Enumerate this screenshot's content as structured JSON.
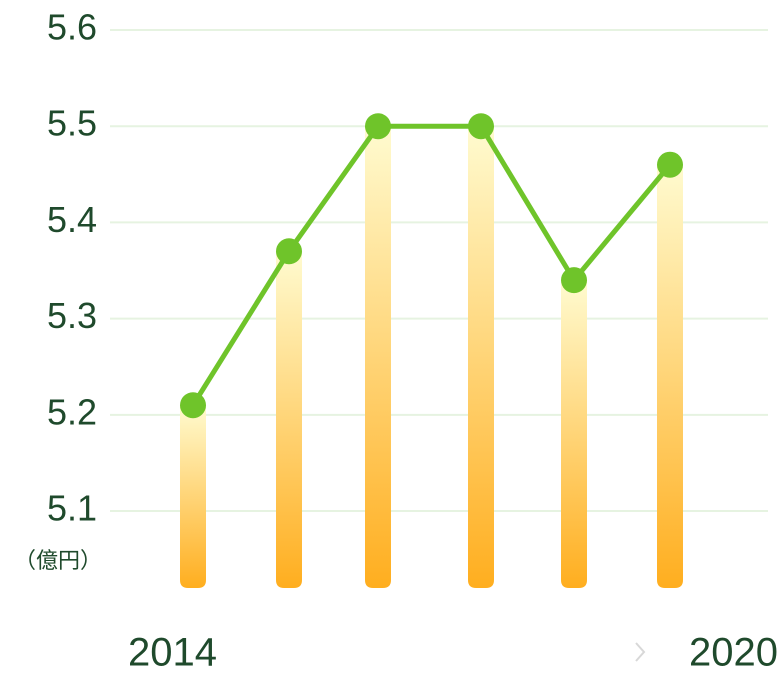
{
  "chart_data": {
    "type": "line_bar",
    "y_label": "（億円）",
    "categories": [
      "2014",
      null,
      null,
      null,
      null,
      "2020"
    ],
    "values": [
      5.21,
      5.37,
      5.5,
      5.5,
      5.34,
      5.46
    ],
    "color": "#6fc42a",
    "ylim": [
      5.02,
      5.6
    ],
    "yticks": [
      5.1,
      5.2,
      5.3,
      5.4,
      5.5,
      5.6
    ],
    "grid": true
  }
}
